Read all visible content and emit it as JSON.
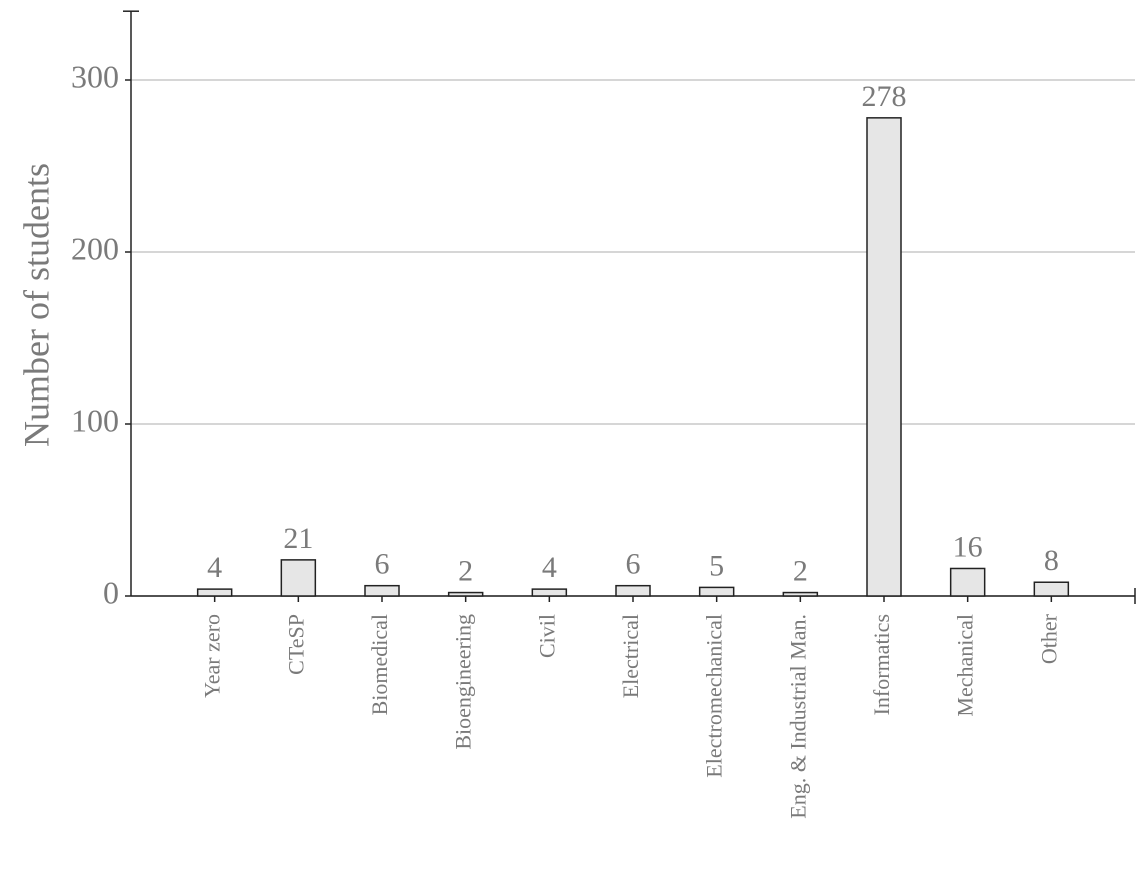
{
  "chart_data": {
    "type": "bar",
    "y_label": "Number of students",
    "categories": [
      "Year zero",
      "CTeSP",
      "Biomedical",
      "Bioengineering",
      "Civil",
      "Electrical",
      "Electromechanical",
      "Eng. & Industrial Man.",
      "Informatics",
      "Mechanical",
      "Other"
    ],
    "values": [
      4,
      21,
      6,
      2,
      4,
      6,
      5,
      2,
      278,
      16,
      8
    ],
    "color": "#e6e6e6",
    "ylim": [
      0,
      340
    ],
    "yticks": [
      0,
      100,
      200,
      300
    ],
    "grid": true
  }
}
